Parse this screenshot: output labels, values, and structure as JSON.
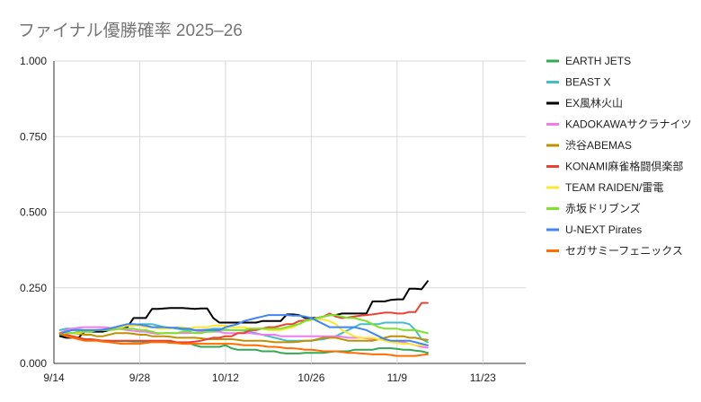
{
  "chart_data": {
    "type": "line",
    "title": "ファイナル優勝確率 2025–26",
    "xlabel": "",
    "ylabel": "",
    "x_start": "9/14",
    "x_end": "11/30",
    "xlim": [
      "9/14",
      "11/30"
    ],
    "ylim": [
      0,
      1
    ],
    "y_ticks": [
      "0.000",
      "0.250",
      "0.500",
      "0.750",
      "1.000"
    ],
    "x_ticks": [
      "9/14",
      "9/28",
      "10/12",
      "10/26",
      "11/9",
      "11/23"
    ],
    "grid": true,
    "legend_position": "right",
    "x": [
      "9/15",
      "9/16",
      "9/17",
      "9/18",
      "9/19",
      "9/20",
      "9/21",
      "9/22",
      "9/23",
      "9/24",
      "9/25",
      "9/26",
      "9/27",
      "9/28",
      "9/29",
      "9/30",
      "10/1",
      "10/2",
      "10/3",
      "10/4",
      "10/5",
      "10/6",
      "10/7",
      "10/8",
      "10/9",
      "10/10",
      "10/11",
      "10/12",
      "10/13",
      "10/14",
      "10/15",
      "10/16",
      "10/17",
      "10/18",
      "10/19",
      "10/20",
      "10/21",
      "10/22",
      "10/23",
      "10/24",
      "10/25",
      "10/26",
      "10/27",
      "10/28",
      "10/29",
      "10/30",
      "10/31",
      "11/1",
      "11/2",
      "11/3",
      "11/4",
      "11/5",
      "11/6",
      "11/7",
      "11/8",
      "11/9",
      "11/10",
      "11/11",
      "11/12",
      "11/13",
      "11/14"
    ],
    "series": [
      {
        "name": "EARTH JETS",
        "color": "#34a853",
        "values": [
          0.095,
          0.09,
          0.09,
          0.085,
          0.08,
          0.078,
          0.076,
          0.075,
          0.075,
          0.074,
          0.073,
          0.073,
          0.072,
          0.072,
          0.072,
          0.071,
          0.071,
          0.07,
          0.07,
          0.069,
          0.068,
          0.068,
          0.06,
          0.055,
          0.055,
          0.055,
          0.055,
          0.06,
          0.05,
          0.045,
          0.045,
          0.045,
          0.045,
          0.04,
          0.04,
          0.04,
          0.035,
          0.033,
          0.033,
          0.033,
          0.035,
          0.035,
          0.035,
          0.035,
          0.038,
          0.04,
          0.04,
          0.04,
          0.045,
          0.045,
          0.045,
          0.045,
          0.05,
          0.05,
          0.05,
          0.048,
          0.045,
          0.045,
          0.042,
          0.04,
          0.035
        ]
      },
      {
        "name": "BEAST X",
        "color": "#46bdc6",
        "values": [
          0.11,
          0.115,
          0.115,
          0.112,
          0.11,
          0.11,
          0.11,
          0.11,
          0.115,
          0.12,
          0.12,
          0.125,
          0.125,
          0.13,
          0.13,
          0.13,
          0.125,
          0.12,
          0.118,
          0.115,
          0.112,
          0.11,
          0.11,
          0.11,
          0.112,
          0.115,
          0.115,
          0.112,
          0.11,
          0.11,
          0.108,
          0.105,
          0.1,
          0.095,
          0.09,
          0.085,
          0.08,
          0.075,
          0.075,
          0.075,
          0.075,
          0.075,
          0.078,
          0.08,
          0.085,
          0.09,
          0.1,
          0.11,
          0.12,
          0.13,
          0.13,
          0.13,
          0.13,
          0.135,
          0.135,
          0.135,
          0.135,
          0.13,
          0.11,
          0.08,
          0.07
        ]
      },
      {
        "name": "EX風林火山",
        "color": "#000000",
        "values": [
          0.09,
          0.085,
          0.085,
          0.085,
          0.105,
          0.105,
          0.105,
          0.105,
          0.11,
          0.115,
          0.12,
          0.12,
          0.15,
          0.15,
          0.15,
          0.18,
          0.18,
          0.182,
          0.183,
          0.183,
          0.183,
          0.182,
          0.18,
          0.182,
          0.182,
          0.15,
          0.135,
          0.135,
          0.135,
          0.135,
          0.135,
          0.135,
          0.135,
          0.14,
          0.14,
          0.14,
          0.14,
          0.162,
          0.162,
          0.16,
          0.15,
          0.15,
          0.15,
          0.155,
          0.16,
          0.16,
          0.165,
          0.165,
          0.165,
          0.165,
          0.165,
          0.205,
          0.205,
          0.205,
          0.21,
          0.212,
          0.212,
          0.247,
          0.247,
          0.245,
          0.272
        ]
      },
      {
        "name": "KADOKAWAサクラナイツ",
        "color": "#f07cf0",
        "values": [
          0.1,
          0.11,
          0.115,
          0.118,
          0.12,
          0.12,
          0.12,
          0.12,
          0.118,
          0.115,
          0.113,
          0.11,
          0.108,
          0.105,
          0.105,
          0.1,
          0.098,
          0.1,
          0.1,
          0.1,
          0.1,
          0.1,
          0.102,
          0.105,
          0.105,
          0.105,
          0.105,
          0.1,
          0.1,
          0.1,
          0.1,
          0.1,
          0.098,
          0.095,
          0.095,
          0.095,
          0.09,
          0.09,
          0.09,
          0.09,
          0.09,
          0.09,
          0.09,
          0.09,
          0.09,
          0.09,
          0.088,
          0.085,
          0.085,
          0.085,
          0.083,
          0.08,
          0.08,
          0.08,
          0.075,
          0.07,
          0.07,
          0.065,
          0.06,
          0.055,
          0.052
        ]
      },
      {
        "name": "渋谷ABEMAS",
        "color": "#bf9000",
        "values": [
          0.1,
          0.1,
          0.1,
          0.098,
          0.095,
          0.095,
          0.09,
          0.09,
          0.095,
          0.1,
          0.1,
          0.1,
          0.098,
          0.095,
          0.095,
          0.09,
          0.09,
          0.09,
          0.088,
          0.085,
          0.085,
          0.085,
          0.085,
          0.083,
          0.08,
          0.08,
          0.08,
          0.08,
          0.08,
          0.078,
          0.075,
          0.075,
          0.075,
          0.075,
          0.073,
          0.07,
          0.07,
          0.07,
          0.07,
          0.072,
          0.075,
          0.075,
          0.08,
          0.085,
          0.085,
          0.085,
          0.08,
          0.075,
          0.075,
          0.075,
          0.075,
          0.075,
          0.08,
          0.085,
          0.09,
          0.09,
          0.09,
          0.085,
          0.085,
          0.08,
          0.078
        ]
      },
      {
        "name": "KONAMI麻雀格闘倶楽部",
        "color": "#ea4335",
        "values": [
          0.1,
          0.095,
          0.09,
          0.085,
          0.08,
          0.08,
          0.078,
          0.075,
          0.075,
          0.075,
          0.075,
          0.075,
          0.075,
          0.075,
          0.075,
          0.075,
          0.075,
          0.075,
          0.075,
          0.07,
          0.07,
          0.07,
          0.072,
          0.075,
          0.08,
          0.085,
          0.085,
          0.09,
          0.09,
          0.1,
          0.1,
          0.11,
          0.11,
          0.115,
          0.12,
          0.12,
          0.125,
          0.13,
          0.13,
          0.14,
          0.142,
          0.145,
          0.15,
          0.155,
          0.165,
          0.155,
          0.15,
          0.152,
          0.155,
          0.158,
          0.16,
          0.162,
          0.165,
          0.168,
          0.168,
          0.165,
          0.165,
          0.17,
          0.17,
          0.2,
          0.2
        ]
      },
      {
        "name": "TEAM RAIDEN/雷電",
        "color": "#fbe82e",
        "values": [
          0.1,
          0.1,
          0.1,
          0.1,
          0.105,
          0.11,
          0.11,
          0.112,
          0.115,
          0.12,
          0.12,
          0.125,
          0.125,
          0.125,
          0.12,
          0.12,
          0.115,
          0.115,
          0.115,
          0.12,
          0.12,
          0.115,
          0.12,
          0.12,
          0.12,
          0.125,
          0.125,
          0.125,
          0.12,
          0.12,
          0.12,
          0.115,
          0.115,
          0.115,
          0.11,
          0.11,
          0.11,
          0.115,
          0.12,
          0.13,
          0.14,
          0.145,
          0.145,
          0.145,
          0.14,
          0.13,
          0.11,
          0.1,
          0.09,
          0.085,
          0.085,
          0.085,
          0.08,
          0.075,
          0.07,
          0.068,
          0.065,
          0.065,
          0.06,
          0.06,
          0.06
        ]
      },
      {
        "name": "赤坂ドリブンズ",
        "color": "#7ce22a",
        "values": [
          0.1,
          0.1,
          0.1,
          0.105,
          0.105,
          0.105,
          0.11,
          0.11,
          0.11,
          0.112,
          0.115,
          0.115,
          0.115,
          0.11,
          0.11,
          0.105,
          0.1,
          0.1,
          0.1,
          0.1,
          0.105,
          0.105,
          0.1,
          0.1,
          0.105,
          0.105,
          0.11,
          0.11,
          0.11,
          0.11,
          0.11,
          0.115,
          0.115,
          0.115,
          0.115,
          0.115,
          0.115,
          0.12,
          0.125,
          0.13,
          0.14,
          0.145,
          0.15,
          0.155,
          0.16,
          0.16,
          0.155,
          0.15,
          0.15,
          0.145,
          0.14,
          0.13,
          0.12,
          0.115,
          0.115,
          0.115,
          0.11,
          0.11,
          0.11,
          0.105,
          0.1
        ]
      },
      {
        "name": "U-NEXT Pirates",
        "color": "#4285f4",
        "values": [
          0.1,
          0.105,
          0.11,
          0.11,
          0.11,
          0.11,
          0.11,
          0.112,
          0.115,
          0.12,
          0.125,
          0.13,
          0.13,
          0.128,
          0.125,
          0.12,
          0.12,
          0.12,
          0.118,
          0.118,
          0.115,
          0.115,
          0.11,
          0.11,
          0.11,
          0.11,
          0.11,
          0.12,
          0.125,
          0.13,
          0.14,
          0.145,
          0.15,
          0.155,
          0.16,
          0.16,
          0.16,
          0.16,
          0.158,
          0.158,
          0.155,
          0.15,
          0.14,
          0.13,
          0.12,
          0.12,
          0.12,
          0.12,
          0.12,
          0.115,
          0.11,
          0.1,
          0.09,
          0.08,
          0.075,
          0.075,
          0.075,
          0.075,
          0.07,
          0.065,
          0.06
        ]
      },
      {
        "name": "セガサミーフェニックス",
        "color": "#ff6d01",
        "values": [
          0.1,
          0.09,
          0.085,
          0.08,
          0.075,
          0.075,
          0.075,
          0.072,
          0.07,
          0.068,
          0.065,
          0.065,
          0.065,
          0.065,
          0.068,
          0.07,
          0.07,
          0.07,
          0.068,
          0.067,
          0.065,
          0.065,
          0.065,
          0.065,
          0.065,
          0.065,
          0.065,
          0.065,
          0.065,
          0.063,
          0.06,
          0.06,
          0.06,
          0.058,
          0.055,
          0.055,
          0.053,
          0.05,
          0.05,
          0.048,
          0.045,
          0.045,
          0.043,
          0.04,
          0.04,
          0.04,
          0.038,
          0.035,
          0.035,
          0.033,
          0.032,
          0.03,
          0.03,
          0.03,
          0.028,
          0.025,
          0.025,
          0.025,
          0.025,
          0.028,
          0.03
        ]
      }
    ]
  }
}
